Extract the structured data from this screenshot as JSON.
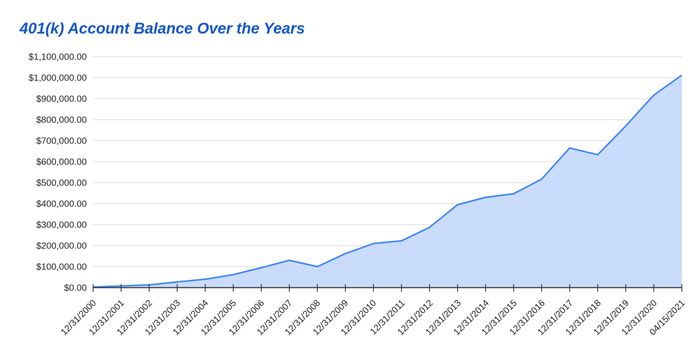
{
  "chart_data": {
    "type": "area",
    "title": "401(k) Account Balance Over the Years",
    "xlabel": "",
    "ylabel": "",
    "ylim": [
      0,
      1100000
    ],
    "grid": true,
    "legend": "none",
    "colors": {
      "title": "#1155cc",
      "line": "#4285f4",
      "fill": "#c6dafc",
      "grid": "#d9d9d9",
      "axis": "#333333"
    },
    "y_ticks": [
      "$0.00",
      "$100,000.00",
      "$200,000.00",
      "$300,000.00",
      "$400,000.00",
      "$500,000.00",
      "$600,000.00",
      "$700,000.00",
      "$800,000.00",
      "$900,000.00",
      "$1,000,000.00",
      "$1,100,000.00"
    ],
    "categories": [
      "12/31/2000",
      "12/31/2001",
      "12/31/2002",
      "12/31/2003",
      "12/31/2004",
      "12/31/2005",
      "12/31/2006",
      "12/31/2007",
      "12/31/2008",
      "12/31/2009",
      "12/31/2010",
      "12/31/2011",
      "12/31/2012",
      "12/31/2013",
      "12/31/2014",
      "12/31/2015",
      "12/31/2016",
      "12/31/2017",
      "12/31/2018",
      "12/31/2019",
      "12/31/2020",
      "04/15/2021"
    ],
    "series": [
      {
        "name": "Account Balance",
        "values": [
          3000,
          8000,
          13000,
          27000,
          40000,
          62000,
          95000,
          130000,
          100000,
          162000,
          210000,
          223000,
          287000,
          395000,
          430000,
          447000,
          517000,
          665000,
          633000,
          770000,
          917000,
          1012000
        ]
      }
    ]
  }
}
